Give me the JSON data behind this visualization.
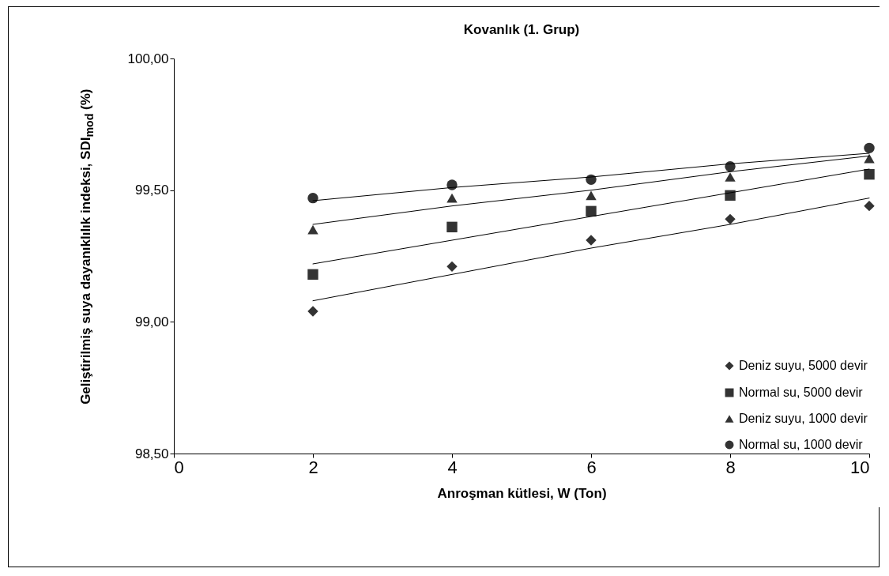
{
  "chart_data": {
    "type": "scatter",
    "title": "Kovanlık (1. Grup)",
    "xlabel": "Anroşman kütlesi, W (Ton)",
    "ylabel": "Geliştirilmiş suya dayanıklılık indeksi, SDI$_{mod}$ (%)",
    "x": [
      2,
      4,
      6,
      8,
      10
    ],
    "series": [
      {
        "name": "Deniz suyu, 5000 devir",
        "color": "#333333",
        "marker": "diamond",
        "values": [
          99.04,
          99.21,
          99.31,
          99.39,
          99.44
        ]
      },
      {
        "name": "Normal su, 5000 devir",
        "color": "#333333",
        "marker": "square",
        "values": [
          99.18,
          99.36,
          99.42,
          99.48,
          99.56
        ]
      },
      {
        "name": "Deniz suyu, 1000 devir",
        "color": "#333333",
        "marker": "triangle",
        "values": [
          99.35,
          99.47,
          99.48,
          99.55,
          99.62
        ]
      },
      {
        "name": "Normal su, 1000 devir",
        "color": "#333333",
        "marker": "circle",
        "values": [
          99.47,
          99.52,
          99.54,
          99.59,
          99.66
        ]
      },
      {
        "type": "line",
        "color": "#000000",
        "marker": "none",
        "values": [
          99.08,
          99.18,
          99.28,
          99.37,
          99.47
        ]
      },
      {
        "type": "line",
        "color": "#000000",
        "marker": "none",
        "values": [
          99.22,
          99.31,
          99.4,
          99.49,
          99.58
        ]
      },
      {
        "type": "line",
        "color": "#000000",
        "marker": "none",
        "values": [
          99.37,
          99.44,
          99.5,
          99.57,
          99.63
        ]
      },
      {
        "type": "line",
        "color": "#000000",
        "marker": "none",
        "values": [
          99.46,
          99.51,
          99.55,
          99.6,
          99.64
        ]
      }
    ],
    "xlim": [
      0,
      10
    ],
    "xticks": [
      0,
      2,
      4,
      6,
      8,
      10
    ],
    "ylim": [
      98.5,
      100
    ],
    "yticks": [
      {
        "value": 98.5,
        "label": "98,50"
      },
      {
        "value": 99,
        "label": "99,00"
      },
      {
        "value": 99.5,
        "label": "99,50"
      },
      {
        "value": 100,
        "label": "100,00"
      }
    ],
    "grid": false,
    "legend": "bottom right"
  }
}
